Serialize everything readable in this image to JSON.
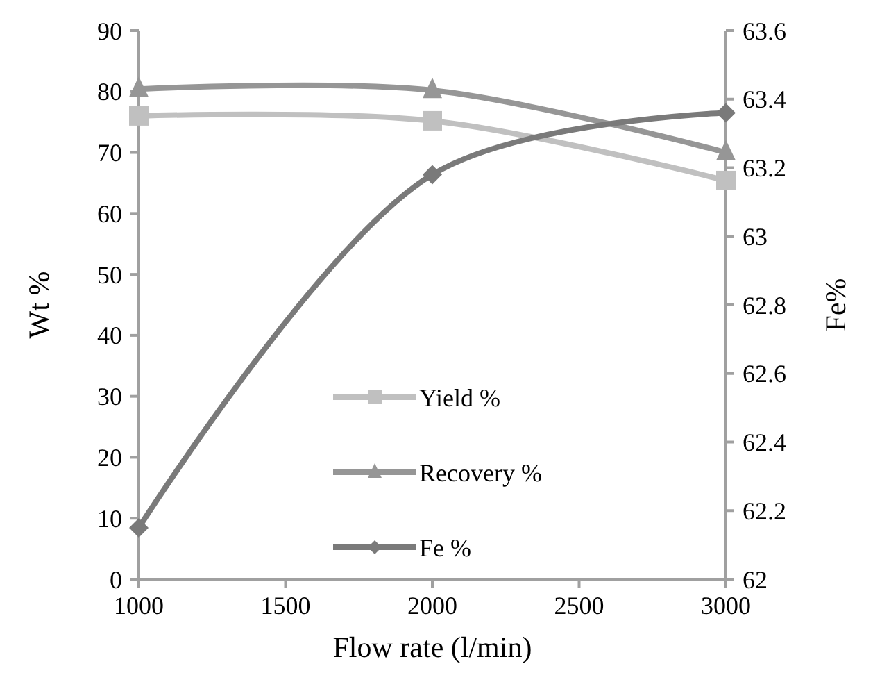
{
  "chart_data": {
    "type": "line",
    "xlabel": "Flow rate (l/min)",
    "ylabel": "Wt %",
    "y2label": "Fe%",
    "x": [
      1000,
      2000,
      3000
    ],
    "xlim": [
      1000,
      3000
    ],
    "xticks": [
      1000,
      1500,
      2000,
      2500,
      3000
    ],
    "ylim": [
      0,
      90
    ],
    "yticks": [
      0,
      10,
      20,
      30,
      40,
      50,
      60,
      70,
      80,
      90
    ],
    "y2lim": [
      62,
      63.6
    ],
    "y2ticks": [
      62,
      {
        "value": 62.2,
        "label": "62.2"
      },
      {
        "value": 62.4,
        "label": "62.4"
      },
      {
        "value": 62.6,
        "label": "62.6"
      },
      {
        "value": 62.8,
        "label": "62.8"
      },
      63,
      {
        "value": 63.2,
        "label": "63.2"
      },
      {
        "value": 63.4,
        "label": "63.4"
      },
      {
        "value": 63.6,
        "label": "63.6"
      }
    ],
    "grid": false,
    "legend": "center",
    "series": [
      {
        "name": "Yield %",
        "color": "#c0c0c0",
        "marker": "square",
        "values": [
          76,
          75.2,
          65.4
        ]
      },
      {
        "name": "Recovery %",
        "color": "#969696",
        "marker": "triangle",
        "values": [
          80.4,
          80.2,
          70
        ]
      },
      {
        "name": "Fe %",
        "color": "#7a7a7a",
        "marker": "diamond",
        "axis": "y2",
        "values": [
          62.15,
          63.18,
          63.36
        ]
      }
    ]
  }
}
